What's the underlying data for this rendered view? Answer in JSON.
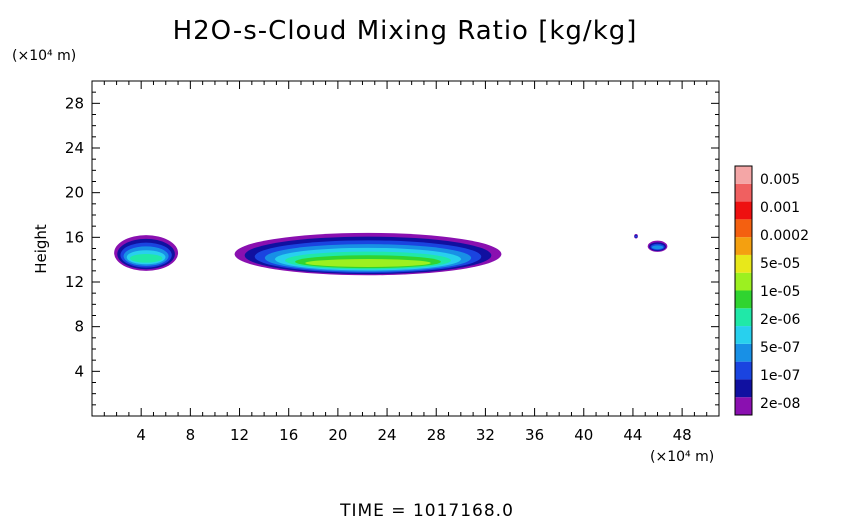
{
  "chart_data": {
    "type": "heatmap",
    "title": "H2O-s-Cloud Mixing Ratio [kg/kg]",
    "xunit": "(×10⁴ m)",
    "yunit": "(×10⁴ m)",
    "ylabel": "Height",
    "xlim": [
      0,
      51
    ],
    "ylim": [
      0,
      30
    ],
    "xticks": [
      4,
      8,
      12,
      16,
      20,
      24,
      28,
      32,
      36,
      40,
      44,
      48
    ],
    "yticks": [
      4,
      8,
      12,
      16,
      20,
      24,
      28
    ],
    "colorbar": {
      "colors": [
        "#8a10b0",
        "#1010a0",
        "#1a44e0",
        "#1890e6",
        "#28d0ee",
        "#20e8a8",
        "#30d430",
        "#9cf020",
        "#e8e81a",
        "#f4a010",
        "#f46010",
        "#ee1010",
        "#f06060",
        "#f4a6a6"
      ],
      "labels": [
        "2e-08",
        "1e-07",
        "5e-07",
        "2e-06",
        "1e-05",
        "5e-05",
        "0.0002",
        "0.001",
        "0.005"
      ]
    },
    "regions": [
      {
        "x": [
          1.8,
          7.0
        ],
        "y": [
          13.0,
          16.2
        ],
        "level": 5
      },
      {
        "x": [
          11.6,
          33.3
        ],
        "y": [
          12.6,
          16.4
        ],
        "level": 7
      },
      {
        "x": [
          44.1,
          44.4
        ],
        "y": [
          15.9,
          16.3
        ],
        "level": 2
      },
      {
        "x": [
          45.2,
          46.8
        ],
        "y": [
          14.7,
          15.7
        ],
        "level": 3
      }
    ]
  },
  "footer": {
    "time_label": "TIME  =  1017168.0"
  }
}
